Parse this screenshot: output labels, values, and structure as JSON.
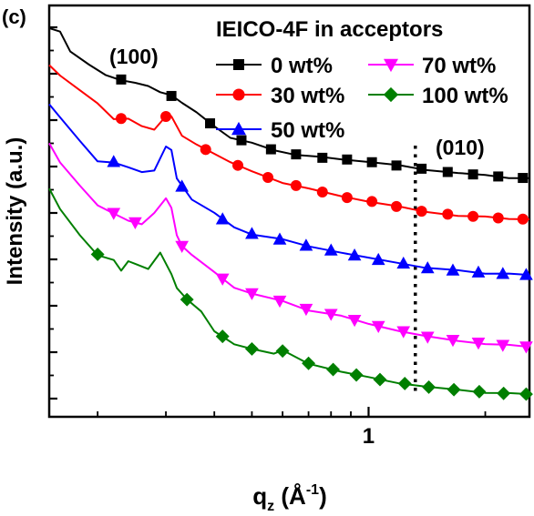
{
  "chart_data": {
    "type": "line",
    "panel_label": "(c)",
    "ylabel": "Intensity (a.u.)",
    "xlabel": {
      "main": "q",
      "sub": "z",
      "unit_open": " (Å",
      "unit_sup": "-1",
      "unit_close": ")"
    },
    "x_scale": "log",
    "xlim": [
      0.15,
      2.6
    ],
    "ylim": [
      0,
      10
    ],
    "x_tick_labels": [
      {
        "value": 1,
        "label": "1"
      }
    ],
    "y_ticks_unlabeled": true,
    "legend": {
      "title": "IEICO-4F in acceptors",
      "placement": "top-right"
    },
    "annotations": [
      {
        "text": "(100)",
        "x": 0.28,
        "y": 9.0
      },
      {
        "text": "(010)",
        "x": 1.8,
        "y": 6.4
      }
    ],
    "reference_line": {
      "x": 1.32,
      "style": "dotted",
      "color": "#000000"
    },
    "series": [
      {
        "name": "0 wt%",
        "color": "#000000",
        "marker": "square",
        "points": [
          [
            0.15,
            9.45
          ],
          [
            0.16,
            9.35
          ],
          [
            0.17,
            8.9
          ],
          [
            0.19,
            8.55
          ],
          [
            0.21,
            8.3
          ],
          [
            0.23,
            8.2
          ],
          [
            0.25,
            8.1
          ],
          [
            0.27,
            8.05
          ],
          [
            0.29,
            7.9
          ],
          [
            0.31,
            7.8
          ],
          [
            0.33,
            7.65
          ],
          [
            0.36,
            7.4
          ],
          [
            0.4,
            7.05
          ],
          [
            0.44,
            6.8
          ],
          [
            0.5,
            6.65
          ],
          [
            0.57,
            6.48
          ],
          [
            0.65,
            6.38
          ],
          [
            0.75,
            6.3
          ],
          [
            0.85,
            6.27
          ],
          [
            1.0,
            6.2
          ],
          [
            1.2,
            6.1
          ],
          [
            1.4,
            6.02
          ],
          [
            1.7,
            5.92
          ],
          [
            2.0,
            5.87
          ],
          [
            2.3,
            5.82
          ],
          [
            2.6,
            5.8
          ]
        ],
        "marker_x": [
          0.23,
          0.31,
          0.39,
          0.47,
          0.56,
          0.65,
          0.76,
          0.88,
          1.02,
          1.18,
          1.37,
          1.6,
          1.86,
          2.16,
          2.5
        ]
      },
      {
        "name": "30 wt%",
        "color": "#ff0000",
        "marker": "circle",
        "points": [
          [
            0.15,
            8.55
          ],
          [
            0.16,
            8.3
          ],
          [
            0.18,
            7.95
          ],
          [
            0.2,
            7.6
          ],
          [
            0.22,
            7.25
          ],
          [
            0.24,
            7.25
          ],
          [
            0.26,
            7.05
          ],
          [
            0.28,
            7.0
          ],
          [
            0.3,
            7.3
          ],
          [
            0.31,
            7.3
          ],
          [
            0.33,
            6.85
          ],
          [
            0.36,
            6.6
          ],
          [
            0.4,
            6.4
          ],
          [
            0.44,
            6.2
          ],
          [
            0.5,
            5.95
          ],
          [
            0.6,
            5.7
          ],
          [
            0.7,
            5.55
          ],
          [
            0.85,
            5.35
          ],
          [
            1.0,
            5.25
          ],
          [
            1.2,
            5.1
          ],
          [
            1.4,
            4.98
          ],
          [
            1.7,
            4.9
          ],
          [
            2.0,
            4.85
          ],
          [
            2.3,
            4.82
          ],
          [
            2.6,
            4.8
          ]
        ],
        "marker_x": [
          0.23,
          0.3,
          0.38,
          0.46,
          0.55,
          0.65,
          0.76,
          0.88,
          1.02,
          1.18,
          1.37,
          1.6,
          1.86,
          2.16,
          2.5
        ]
      },
      {
        "name": "50 wt%",
        "color": "#0000ff",
        "marker": "triangle-up",
        "points": [
          [
            0.15,
            7.6
          ],
          [
            0.16,
            7.3
          ],
          [
            0.18,
            6.7
          ],
          [
            0.2,
            6.2
          ],
          [
            0.22,
            6.2
          ],
          [
            0.24,
            6.05
          ],
          [
            0.26,
            5.95
          ],
          [
            0.28,
            6.0
          ],
          [
            0.3,
            6.55
          ],
          [
            0.31,
            6.5
          ],
          [
            0.32,
            5.8
          ],
          [
            0.33,
            5.6
          ],
          [
            0.35,
            5.3
          ],
          [
            0.4,
            4.95
          ],
          [
            0.45,
            4.6
          ],
          [
            0.5,
            4.45
          ],
          [
            0.6,
            4.3
          ],
          [
            0.7,
            4.15
          ],
          [
            0.85,
            4.0
          ],
          [
            1.0,
            3.85
          ],
          [
            1.2,
            3.75
          ],
          [
            1.4,
            3.62
          ],
          [
            1.7,
            3.55
          ],
          [
            2.0,
            3.5
          ],
          [
            2.3,
            3.47
          ],
          [
            2.6,
            3.45
          ]
        ],
        "marker_x": [
          0.22,
          0.33,
          0.42,
          0.5,
          0.59,
          0.69,
          0.8,
          0.92,
          1.06,
          1.23,
          1.42,
          1.65,
          1.92,
          2.22,
          2.55
        ]
      },
      {
        "name": "70 wt%",
        "color": "#ff00ff",
        "marker": "triangle-down",
        "points": [
          [
            0.15,
            6.65
          ],
          [
            0.16,
            6.2
          ],
          [
            0.18,
            5.6
          ],
          [
            0.2,
            5.15
          ],
          [
            0.22,
            4.95
          ],
          [
            0.24,
            4.75
          ],
          [
            0.26,
            4.7
          ],
          [
            0.28,
            4.95
          ],
          [
            0.3,
            5.3
          ],
          [
            0.31,
            5.1
          ],
          [
            0.32,
            4.4
          ],
          [
            0.33,
            4.15
          ],
          [
            0.35,
            3.95
          ],
          [
            0.4,
            3.5
          ],
          [
            0.45,
            3.15
          ],
          [
            0.5,
            3.0
          ],
          [
            0.6,
            2.8
          ],
          [
            0.7,
            2.6
          ],
          [
            0.85,
            2.45
          ],
          [
            1.0,
            2.25
          ],
          [
            1.2,
            2.1
          ],
          [
            1.4,
            1.95
          ],
          [
            1.7,
            1.85
          ],
          [
            2.0,
            1.78
          ],
          [
            2.3,
            1.73
          ],
          [
            2.6,
            1.7
          ]
        ],
        "marker_x": [
          0.22,
          0.25,
          0.33,
          0.42,
          0.5,
          0.59,
          0.69,
          0.8,
          0.92,
          1.06,
          1.23,
          1.42,
          1.65,
          1.92,
          2.22,
          2.55
        ]
      },
      {
        "name": "100 wt%",
        "color": "#007f00",
        "marker": "diamond",
        "points": [
          [
            0.15,
            5.55
          ],
          [
            0.16,
            5.05
          ],
          [
            0.18,
            4.4
          ],
          [
            0.2,
            3.95
          ],
          [
            0.22,
            3.8
          ],
          [
            0.23,
            3.55
          ],
          [
            0.24,
            3.8
          ],
          [
            0.25,
            3.7
          ],
          [
            0.27,
            3.6
          ],
          [
            0.29,
            4.0
          ],
          [
            0.31,
            3.45
          ],
          [
            0.32,
            3.15
          ],
          [
            0.34,
            2.85
          ],
          [
            0.37,
            2.55
          ],
          [
            0.4,
            2.1
          ],
          [
            0.45,
            1.75
          ],
          [
            0.5,
            1.65
          ],
          [
            0.57,
            1.55
          ],
          [
            0.6,
            1.6
          ],
          [
            0.7,
            1.3
          ],
          [
            0.85,
            1.1
          ],
          [
            1.0,
            0.95
          ],
          [
            1.2,
            0.83
          ],
          [
            1.4,
            0.73
          ],
          [
            1.7,
            0.65
          ],
          [
            2.0,
            0.6
          ],
          [
            2.3,
            0.56
          ],
          [
            2.6,
            0.55
          ]
        ],
        "marker_x": [
          0.2,
          0.34,
          0.42,
          0.5,
          0.6,
          0.7,
          0.81,
          0.93,
          1.07,
          1.24,
          1.43,
          1.66,
          1.93,
          2.23,
          2.55
        ]
      }
    ]
  }
}
